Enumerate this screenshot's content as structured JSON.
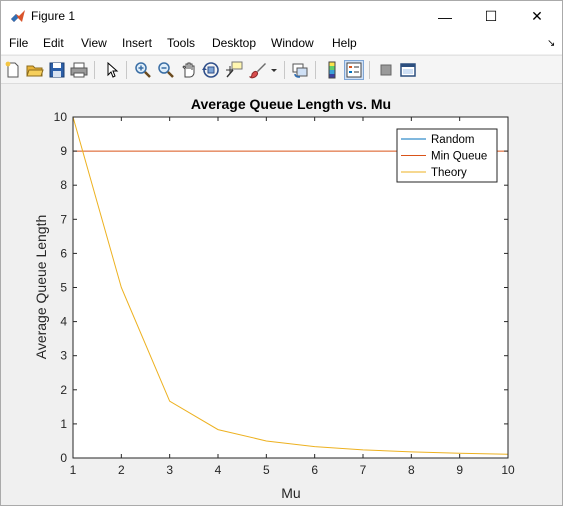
{
  "window": {
    "title": "Figure 1",
    "minimize_glyph": "—",
    "maximize_glyph": "☐",
    "close_glyph": "✕"
  },
  "menu": [
    "File",
    "Edit",
    "View",
    "Insert",
    "Tools",
    "Desktop",
    "Window",
    "Help"
  ],
  "toolbar": {
    "buttons": [
      "new-figure-icon",
      "open-file-icon",
      "save-icon",
      "print-icon",
      "edit-plot-icon",
      "zoom-in-icon",
      "zoom-out-icon",
      "pan-icon",
      "rotate-3d-icon",
      "data-cursor-icon",
      "brush-icon",
      "link-plot-icon",
      "colorbar-icon",
      "legend-icon",
      "hide-plot-tools-icon",
      "show-plot-tools-icon"
    ]
  },
  "chart_data": {
    "type": "line",
    "title": "Average Queue Length vs. Mu",
    "xlabel": "Mu",
    "ylabel": "Average Queue Length",
    "xlim": [
      1,
      10
    ],
    "ylim": [
      0,
      10
    ],
    "x_ticks": [
      1,
      2,
      3,
      4,
      5,
      6,
      7,
      8,
      9,
      10
    ],
    "y_ticks": [
      0,
      1,
      2,
      3,
      4,
      5,
      6,
      7,
      8,
      9,
      10
    ],
    "legend_position": "top-right",
    "grid": false,
    "series": [
      {
        "name": "Random",
        "color": "#0072bd",
        "x": [],
        "y": []
      },
      {
        "name": "Min Queue",
        "color": "#d95319",
        "x": [
          1,
          10
        ],
        "y": [
          9,
          9
        ]
      },
      {
        "name": "Theory",
        "color": "#edb120",
        "x": [
          1,
          2,
          3,
          4,
          5,
          6,
          7,
          8,
          9,
          10
        ],
        "y": [
          10,
          5,
          1.667,
          0.833,
          0.5,
          0.333,
          0.238,
          0.179,
          0.139,
          0.111
        ]
      }
    ]
  }
}
